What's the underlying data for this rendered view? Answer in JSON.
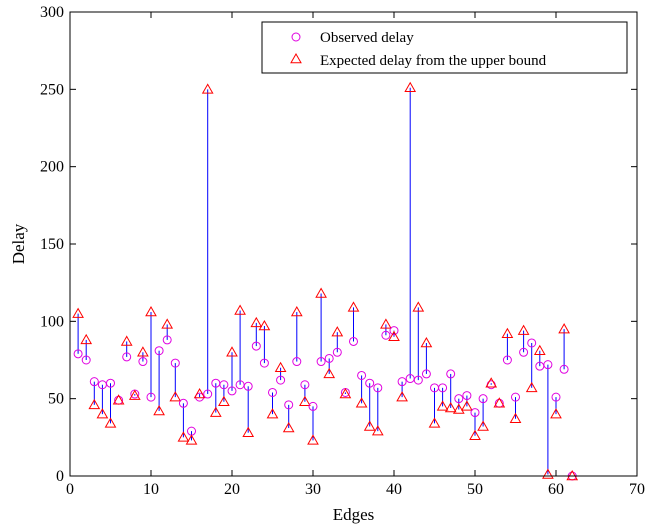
{
  "chart_data": {
    "type": "scatter",
    "title": "",
    "xlabel": "Edges",
    "ylabel": "Delay",
    "xlim": [
      0,
      70
    ],
    "ylim": [
      0,
      300
    ],
    "xticks": [
      "0",
      "10",
      "20",
      "30",
      "40",
      "50",
      "60",
      "70"
    ],
    "yticks": [
      "0",
      "50",
      "100",
      "150",
      "200",
      "250",
      "300"
    ],
    "grid": false,
    "legend_position": "top-right",
    "x": [
      1,
      2,
      3,
      4,
      5,
      6,
      7,
      8,
      9,
      10,
      11,
      12,
      13,
      14,
      15,
      16,
      17,
      18,
      19,
      20,
      21,
      22,
      23,
      24,
      25,
      26,
      27,
      28,
      29,
      30,
      31,
      32,
      33,
      34,
      35,
      36,
      37,
      38,
      39,
      40,
      41,
      42,
      43,
      44,
      45,
      46,
      47,
      48,
      49,
      50,
      51,
      52,
      53,
      54,
      55,
      56,
      57,
      58,
      59,
      60,
      61,
      62
    ],
    "series": [
      {
        "name": "Observed delay",
        "marker": "circle",
        "color": "#e000e0",
        "values": [
          79,
          75,
          61,
          59,
          60,
          49,
          77,
          53,
          74,
          51,
          81,
          88,
          73,
          47,
          29,
          51,
          53,
          60,
          59,
          55,
          59,
          58,
          84,
          73,
          54,
          62,
          46,
          74,
          59,
          45,
          74,
          76,
          80,
          54,
          87,
          65,
          60,
          57,
          91,
          94,
          61,
          63,
          62,
          66,
          57,
          57,
          66,
          50,
          52,
          41,
          50,
          59,
          47,
          75,
          51,
          80,
          86,
          71,
          72,
          51,
          69,
          0
        ],
        "_note": ""
      },
      {
        "name": "Expected delay from the upper bound",
        "marker": "triangle",
        "color": "#ff0000",
        "values": [
          105,
          88,
          46,
          40,
          34,
          49,
          87,
          52,
          80,
          106,
          42,
          98,
          51,
          25,
          23,
          53,
          250,
          41,
          48,
          80,
          107,
          28,
          99,
          97,
          40,
          70,
          31,
          106,
          48,
          23,
          118,
          66,
          93,
          53,
          109,
          47,
          32,
          29,
          98,
          90,
          51,
          251,
          109,
          86,
          34,
          45,
          44,
          43,
          45,
          26,
          32,
          60,
          47,
          92,
          37,
          94,
          57,
          81,
          1,
          40,
          95,
          0
        ]
      }
    ],
    "connector_color": "#0000ff"
  }
}
